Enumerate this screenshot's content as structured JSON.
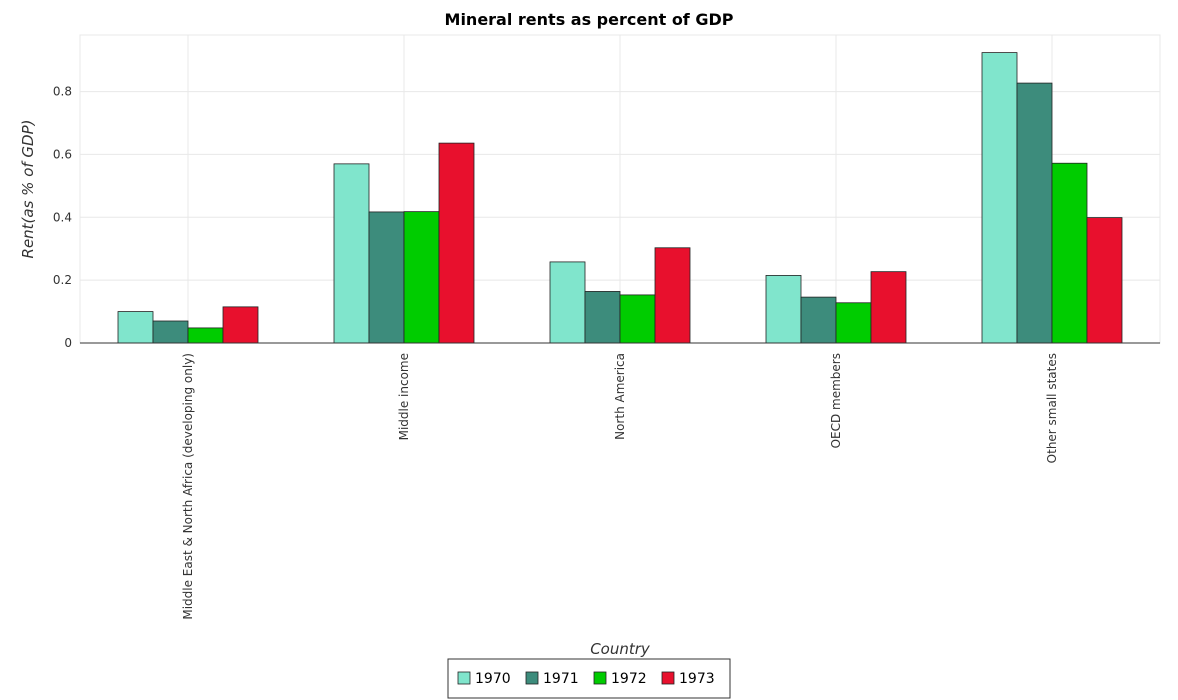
{
  "chart_data": {
    "type": "bar",
    "title": "Mineral rents as percent of GDP",
    "xlabel": "Country",
    "ylabel": "Rent(as % of GDP)",
    "ylim": [
      0,
      0.98
    ],
    "yticks": [
      0,
      0.2,
      0.4,
      0.6,
      0.8
    ],
    "ytick_labels": [
      "0",
      "0.2",
      "0.4",
      "0.6",
      "0.8"
    ],
    "grid": true,
    "legend_position": "bottom-center",
    "categories": [
      "Middle East & North Africa (developing only)",
      "Middle income",
      "North America",
      "OECD members",
      "Other small states"
    ],
    "series": [
      {
        "name": "1970",
        "color": "#80e5cc",
        "values": [
          0.1,
          0.57,
          0.258,
          0.215,
          0.924
        ]
      },
      {
        "name": "1971",
        "color": "#3d8c7c",
        "values": [
          0.07,
          0.417,
          0.164,
          0.146,
          0.827
        ]
      },
      {
        "name": "1972",
        "color": "#00cc00",
        "values": [
          0.048,
          0.418,
          0.153,
          0.128,
          0.572
        ]
      },
      {
        "name": "1973",
        "color": "#e8102d",
        "values": [
          0.115,
          0.636,
          0.303,
          0.227,
          0.399
        ]
      }
    ]
  }
}
